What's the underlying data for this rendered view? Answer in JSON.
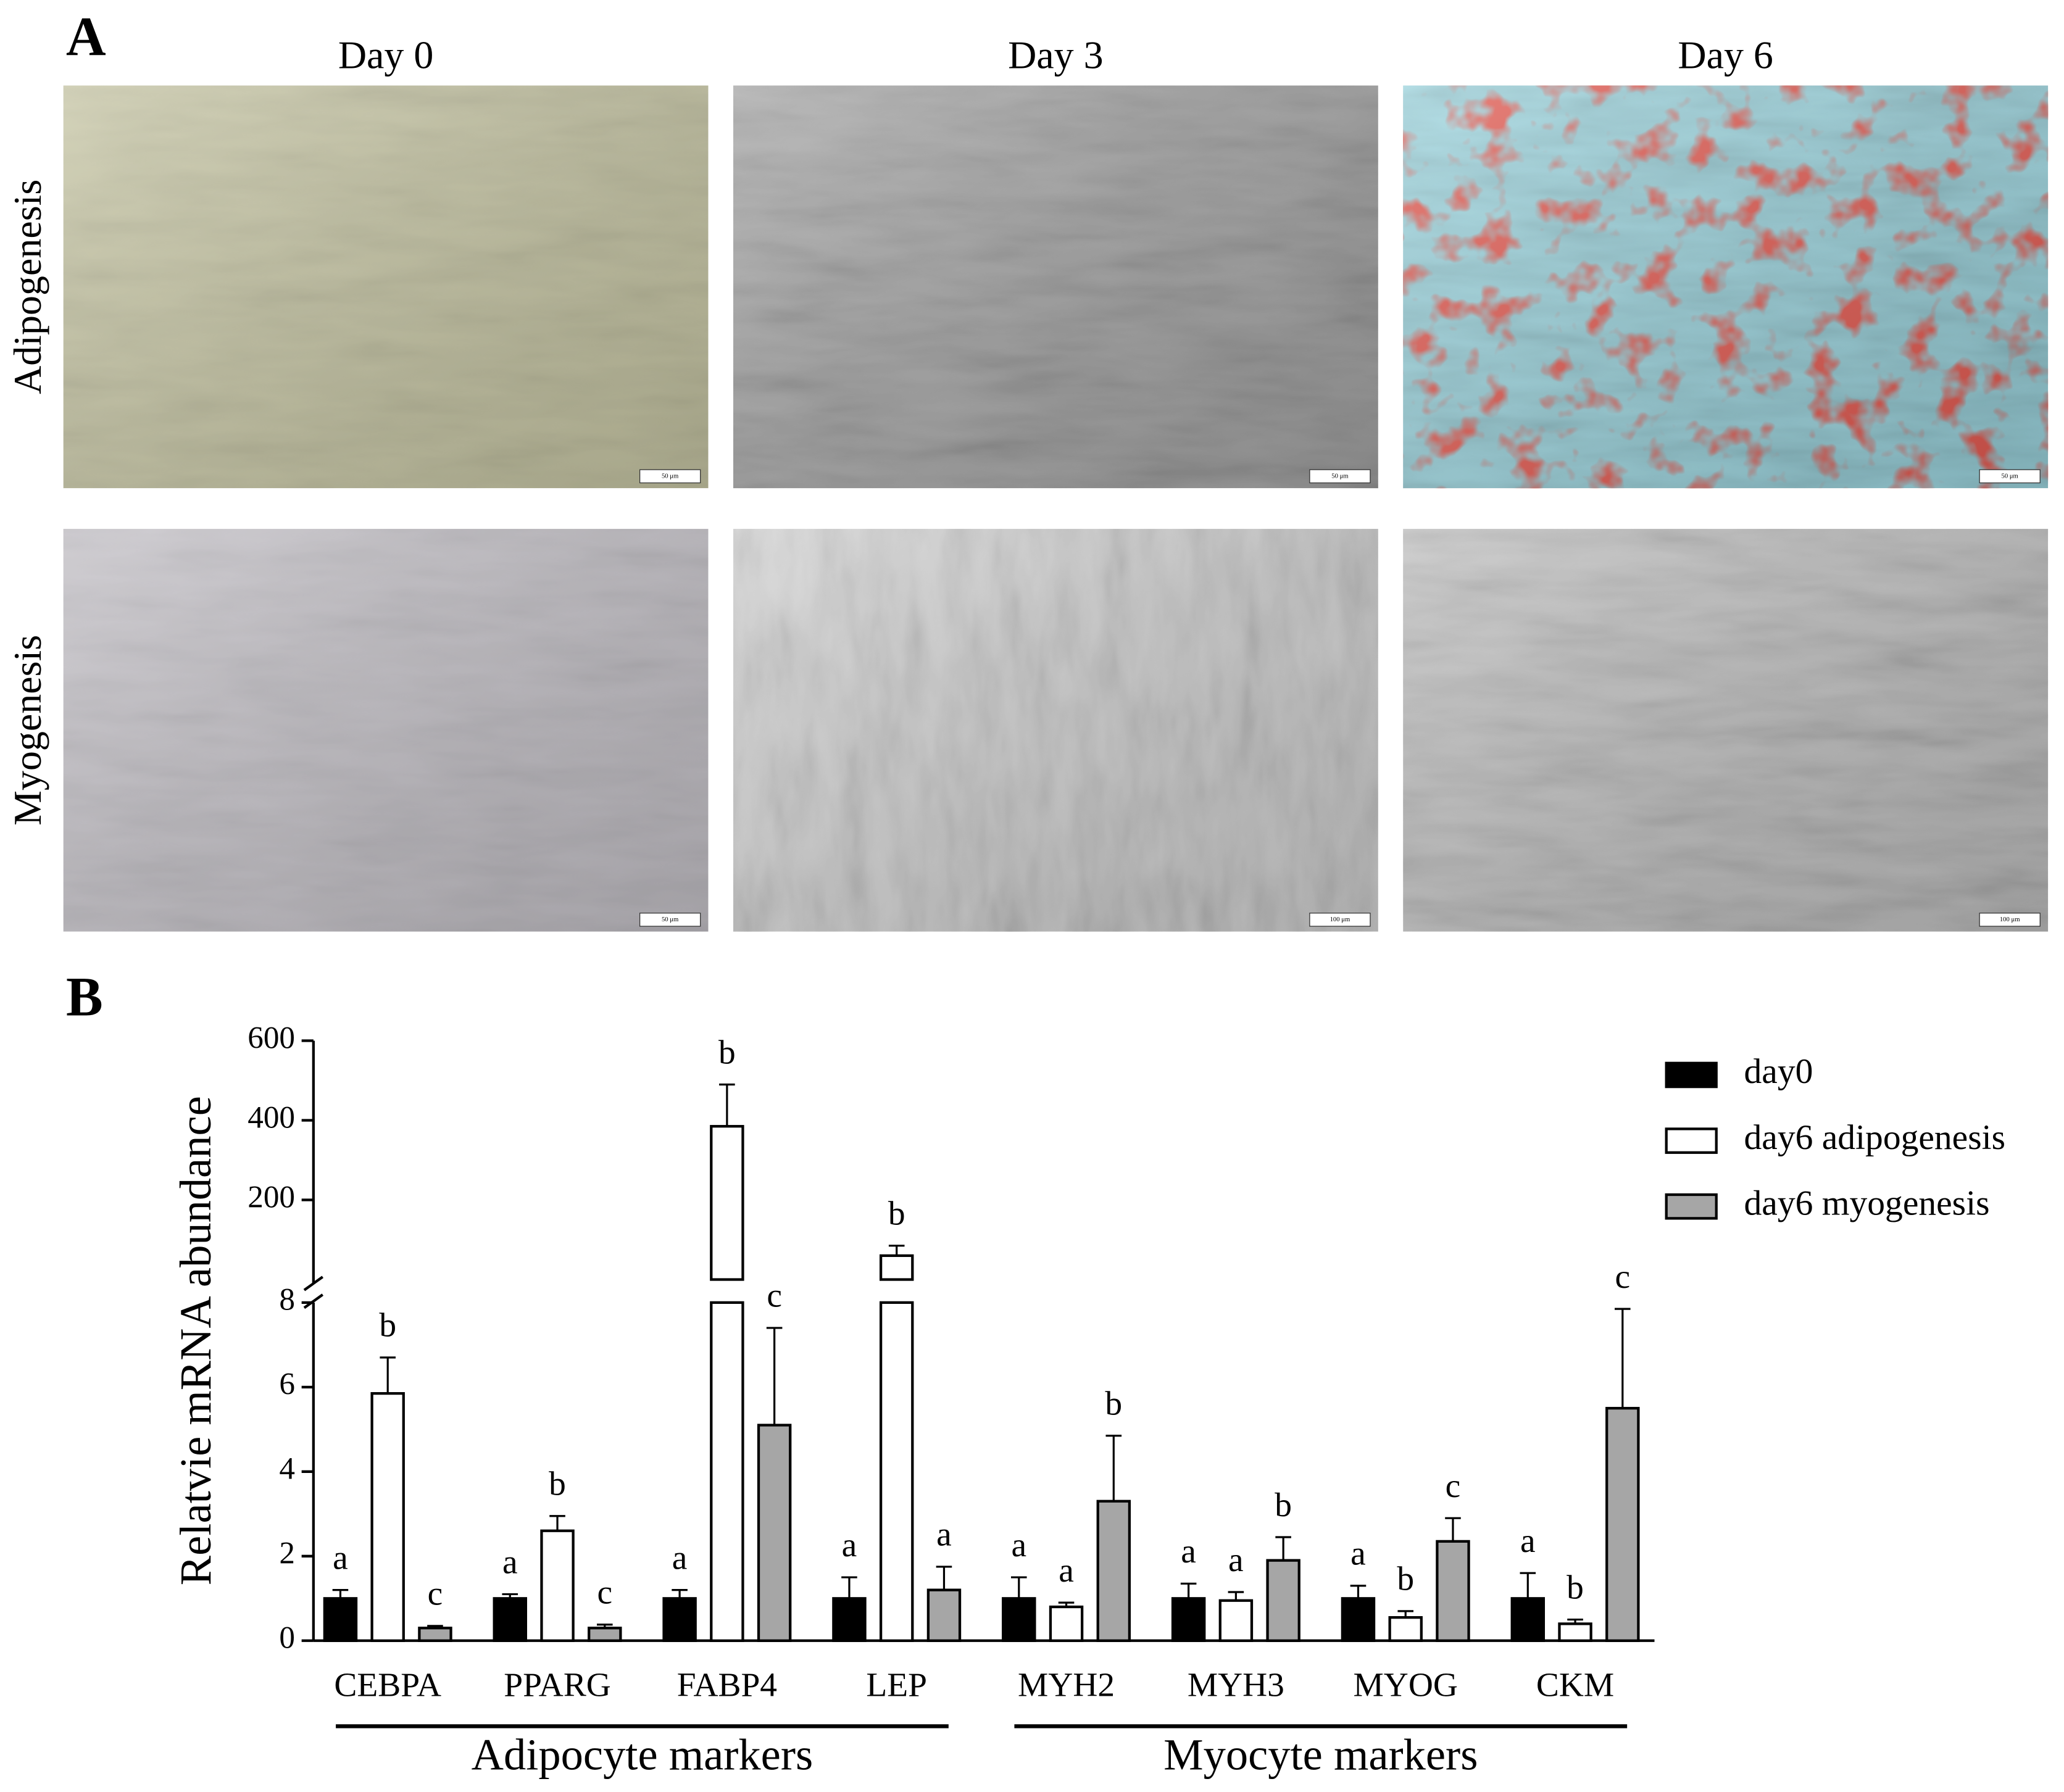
{
  "panel_a": {
    "label": "A",
    "columns": [
      "Day 0",
      "Day 3",
      "Day 6"
    ],
    "rows": [
      "Adipogenesis",
      "Myogenesis"
    ],
    "scale_bars": [
      [
        "50 μm",
        "50 μm",
        "50 μm"
      ],
      [
        "50 μm",
        "100 μm",
        "100 μm"
      ]
    ]
  },
  "panel_b_label": "B",
  "chart_data": {
    "type": "bar",
    "ylabel": "Relatvie mRNA abundance",
    "categories": [
      "CEBPA",
      "PPARG",
      "FABP4",
      "LEP",
      "MYH2",
      "MYH3",
      "MYOG",
      "CKM"
    ],
    "groups": [
      {
        "label": "Adipocyte markers",
        "members": [
          "CEBPA",
          "PPARG",
          "FABP4",
          "LEP"
        ]
      },
      {
        "label": "Myocyte markers",
        "members": [
          "MYH2",
          "MYH3",
          "MYOG",
          "CKM"
        ]
      }
    ],
    "ylim": [
      0,
      8
    ],
    "yticks": [
      0,
      2,
      4,
      6,
      8
    ],
    "ylim_upper": [
      0,
      600
    ],
    "yticks_upper": [
      200,
      400,
      600
    ],
    "axis_break": true,
    "legend": "right",
    "edge_color": "#000000",
    "series": [
      {
        "name": "day0",
        "color": "#000000",
        "values": [
          1.0,
          1.0,
          1.0,
          1.0,
          1.0,
          1.0,
          1.0,
          1.0
        ],
        "errors": [
          0.2,
          0.1,
          0.2,
          0.5,
          0.5,
          0.35,
          0.3,
          0.6
        ],
        "letters": [
          "a",
          "a",
          "a",
          "a",
          "a",
          "a",
          "a",
          "a"
        ]
      },
      {
        "name": "day6 adipogenesis",
        "color": "#ffffff",
        "values": [
          5.85,
          2.6,
          385,
          60,
          0.8,
          0.95,
          0.55,
          0.4
        ],
        "errors": [
          0.85,
          0.35,
          105,
          25,
          0.1,
          0.2,
          0.15,
          0.1
        ],
        "letters": [
          "b",
          "b",
          "b",
          "b",
          "a",
          "a",
          "b",
          "b"
        ]
      },
      {
        "name": "day6 myogenesis",
        "color": "#a6a6a6",
        "values": [
          0.3,
          0.3,
          5.1,
          1.2,
          3.3,
          1.9,
          2.35,
          5.5
        ],
        "errors": [
          0.05,
          0.08,
          2.3,
          0.55,
          1.55,
          0.55,
          0.55,
          2.35
        ],
        "letters": [
          "c",
          "c",
          "c",
          "a",
          "b",
          "b",
          "c",
          "c"
        ]
      }
    ]
  }
}
